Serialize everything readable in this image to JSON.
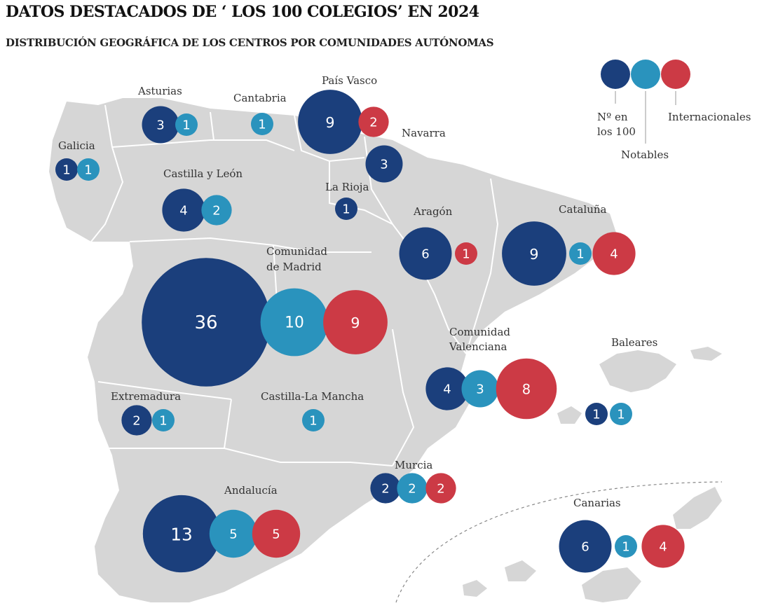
{
  "title": "DATOS DESTACADOS DE ‘ LOS 100 COLEGIOS’ EN 2024",
  "subtitle": "DISTRIBUCIÓN GEOGRÁFICA DE LOS CENTROS POR COMUNIDADES AUTÓNOMAS",
  "colors": {
    "n100": "#1b3f7c",
    "notables": "#2a93bd",
    "internacionales": "#cc3a45",
    "land": "#d6d6d6",
    "border": "#ffffff"
  },
  "legend": {
    "n100_line1": "Nº en",
    "n100_line2": "los 100",
    "notables": "Notables",
    "internacionales": "Internacionales"
  },
  "regions": [
    {
      "name": "Galicia",
      "n100": 1,
      "notables": 1
    },
    {
      "name": "Asturias",
      "n100": 3,
      "notables": 1
    },
    {
      "name": "Cantabria",
      "notables": 1
    },
    {
      "name": "País Vasco",
      "n100": 9,
      "internacionales": 2
    },
    {
      "name": "Navarra",
      "n100": 3
    },
    {
      "name": "Castilla y León",
      "n100": 4,
      "notables": 2
    },
    {
      "name": "La Rioja",
      "n100": 1
    },
    {
      "name": "Aragón",
      "n100": 6,
      "internacionales": 1
    },
    {
      "name": "Cataluña",
      "n100": 9,
      "notables": 1,
      "internacionales": 4
    },
    {
      "name_line1": "Comunidad",
      "name_line2": "de Madrid",
      "n100": 36,
      "notables": 10,
      "internacionales": 9
    },
    {
      "name_line1": "Comunidad",
      "name_line2": "Valenciana",
      "n100": 4,
      "notables": 3,
      "internacionales": 8
    },
    {
      "name": "Baleares",
      "n100": 1,
      "notables": 1
    },
    {
      "name": "Extremadura",
      "n100": 2,
      "notables": 1
    },
    {
      "name": "Castilla-La Mancha",
      "notables": 1
    },
    {
      "name": "Murcia",
      "n100": 2,
      "notables": 2,
      "internacionales": 2
    },
    {
      "name": "Andalucía",
      "n100": 13,
      "notables": 5,
      "internacionales": 5
    },
    {
      "name": "Canarias",
      "n100": 6,
      "notables": 1,
      "internacionales": 4
    }
  ]
}
